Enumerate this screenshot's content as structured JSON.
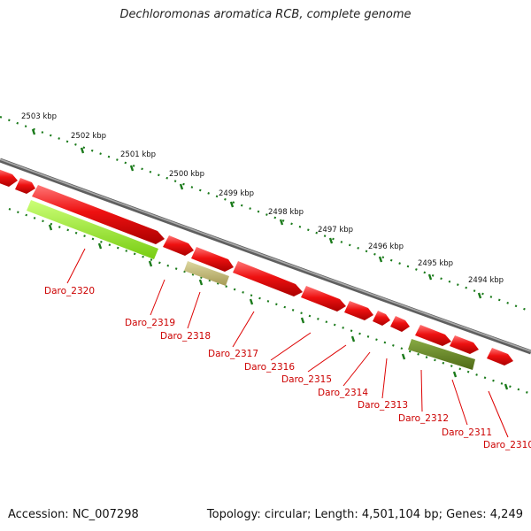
{
  "header": {
    "title": "Dechloromonas aromatica RCB, complete genome"
  },
  "footer": {
    "accession": "Accession: NC_007298",
    "stats": "Topology: circular; Length: 4,501,104 bp; Genes: 4,249"
  },
  "colors": {
    "forward_gene": "#ee1111",
    "highlight_light": "#99ee33",
    "highlight_khaki": "#bbb070",
    "highlight_olive": "#668822",
    "backbone": "#888888",
    "ticks": "#1a7a1a",
    "label": "#cc0000"
  },
  "kbp_scale": [
    {
      "label": "2503 kbp"
    },
    {
      "label": "2502 kbp"
    },
    {
      "label": "2501 kbp"
    },
    {
      "label": "2500 kbp"
    },
    {
      "label": "2499 kbp"
    },
    {
      "label": "2498 kbp"
    },
    {
      "label": "2497 kbp"
    },
    {
      "label": "2496 kbp"
    },
    {
      "label": "2495 kbp"
    },
    {
      "label": "2494 kbp"
    }
  ],
  "genes": [
    {
      "label": "Daro_2320"
    },
    {
      "label": "Daro_2319"
    },
    {
      "label": "Daro_2318"
    },
    {
      "label": "Daro_2317"
    },
    {
      "label": "Daro_2316"
    },
    {
      "label": "Daro_2315"
    },
    {
      "label": "Daro_2314"
    },
    {
      "label": "Daro_2313"
    },
    {
      "label": "Daro_2312"
    },
    {
      "label": "Daro_2311"
    },
    {
      "label": "Daro_2310"
    }
  ]
}
